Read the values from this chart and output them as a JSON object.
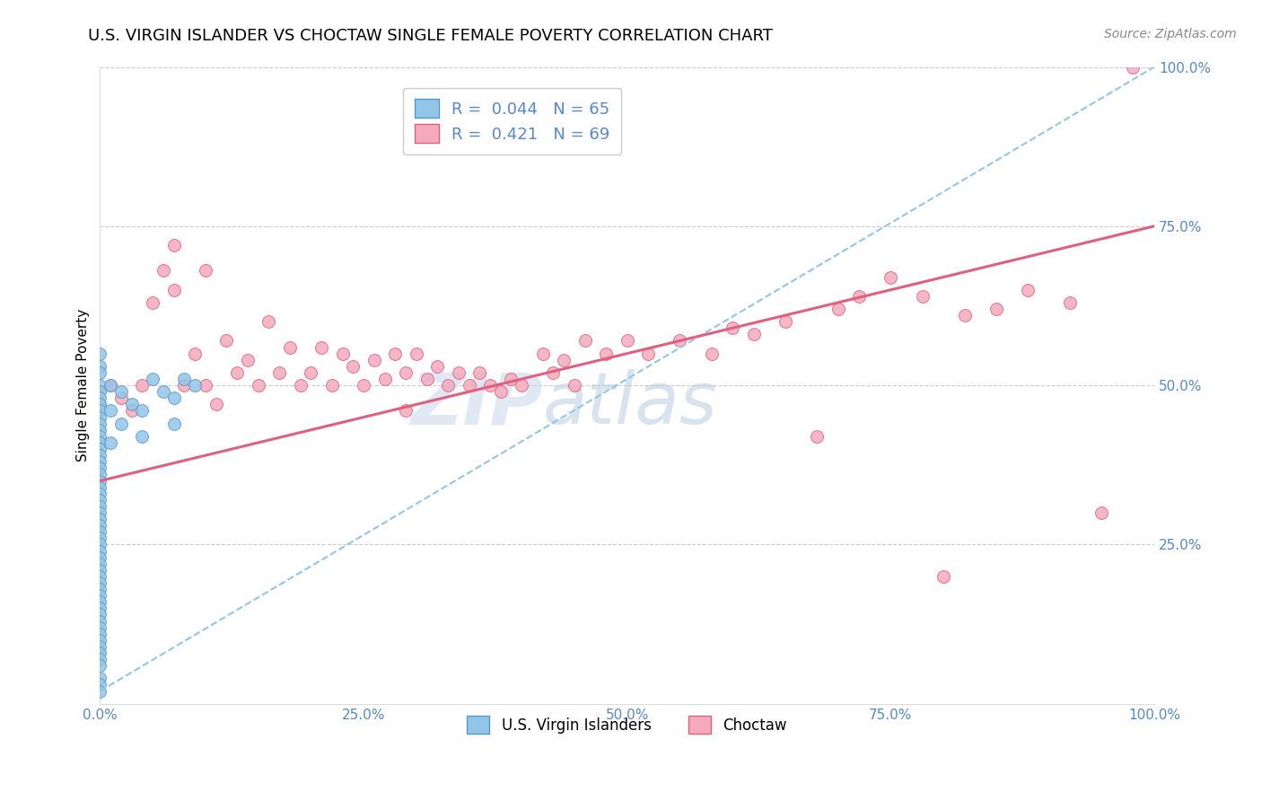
{
  "title": "U.S. VIRGIN ISLANDER VS CHOCTAW SINGLE FEMALE POVERTY CORRELATION CHART",
  "source": "Source: ZipAtlas.com",
  "ylabel": "Single Female Poverty",
  "xlim": [
    0.0,
    1.0
  ],
  "ylim": [
    0.0,
    1.0
  ],
  "xticks": [
    0.0,
    0.25,
    0.5,
    0.75,
    1.0
  ],
  "yticks": [
    0.25,
    0.5,
    0.75,
    1.0
  ],
  "xticklabels": [
    "0.0%",
    "25.0%",
    "50.0%",
    "75.0%",
    "100.0%"
  ],
  "yticklabels": [
    "25.0%",
    "50.0%",
    "75.0%",
    "100.0%"
  ],
  "blue_scatter_x": [
    0.0,
    0.0,
    0.0,
    0.0,
    0.0,
    0.0,
    0.0,
    0.0,
    0.0,
    0.0,
    0.0,
    0.0,
    0.0,
    0.0,
    0.0,
    0.0,
    0.0,
    0.0,
    0.0,
    0.0,
    0.0,
    0.0,
    0.0,
    0.0,
    0.0,
    0.0,
    0.0,
    0.0,
    0.0,
    0.0,
    0.0,
    0.0,
    0.0,
    0.0,
    0.0,
    0.0,
    0.0,
    0.0,
    0.0,
    0.0,
    0.0,
    0.0,
    0.0,
    0.0,
    0.0,
    0.0,
    0.0,
    0.0,
    0.0,
    0.0,
    0.0,
    0.01,
    0.01,
    0.01,
    0.02,
    0.02,
    0.03,
    0.04,
    0.04,
    0.05,
    0.06,
    0.07,
    0.07,
    0.08,
    0.09
  ],
  "blue_scatter_y": [
    0.5,
    0.49,
    0.48,
    0.47,
    0.46,
    0.45,
    0.44,
    0.43,
    0.42,
    0.41,
    0.4,
    0.39,
    0.38,
    0.37,
    0.36,
    0.35,
    0.34,
    0.33,
    0.32,
    0.31,
    0.3,
    0.29,
    0.28,
    0.27,
    0.26,
    0.25,
    0.24,
    0.23,
    0.22,
    0.21,
    0.2,
    0.19,
    0.18,
    0.17,
    0.16,
    0.15,
    0.14,
    0.13,
    0.12,
    0.11,
    0.1,
    0.09,
    0.08,
    0.07,
    0.06,
    0.04,
    0.03,
    0.02,
    0.53,
    0.55,
    0.52,
    0.5,
    0.46,
    0.41,
    0.49,
    0.44,
    0.47,
    0.46,
    0.42,
    0.51,
    0.49,
    0.48,
    0.44,
    0.51,
    0.5
  ],
  "pink_scatter_x": [
    0.0,
    0.01,
    0.02,
    0.03,
    0.04,
    0.05,
    0.06,
    0.07,
    0.07,
    0.08,
    0.09,
    0.1,
    0.1,
    0.11,
    0.12,
    0.13,
    0.14,
    0.15,
    0.16,
    0.17,
    0.18,
    0.19,
    0.2,
    0.21,
    0.22,
    0.23,
    0.24,
    0.25,
    0.26,
    0.27,
    0.28,
    0.29,
    0.29,
    0.3,
    0.31,
    0.32,
    0.33,
    0.34,
    0.35,
    0.36,
    0.37,
    0.38,
    0.39,
    0.4,
    0.42,
    0.43,
    0.44,
    0.45,
    0.46,
    0.48,
    0.5,
    0.52,
    0.55,
    0.58,
    0.6,
    0.62,
    0.65,
    0.68,
    0.7,
    0.72,
    0.75,
    0.78,
    0.8,
    0.82,
    0.85,
    0.88,
    0.92,
    0.95,
    0.98
  ],
  "pink_scatter_y": [
    0.47,
    0.5,
    0.48,
    0.46,
    0.5,
    0.63,
    0.68,
    0.72,
    0.65,
    0.5,
    0.55,
    0.5,
    0.68,
    0.47,
    0.57,
    0.52,
    0.54,
    0.5,
    0.6,
    0.52,
    0.56,
    0.5,
    0.52,
    0.56,
    0.5,
    0.55,
    0.53,
    0.5,
    0.54,
    0.51,
    0.55,
    0.46,
    0.52,
    0.55,
    0.51,
    0.53,
    0.5,
    0.52,
    0.5,
    0.52,
    0.5,
    0.49,
    0.51,
    0.5,
    0.55,
    0.52,
    0.54,
    0.5,
    0.57,
    0.55,
    0.57,
    0.55,
    0.57,
    0.55,
    0.59,
    0.58,
    0.6,
    0.42,
    0.62,
    0.64,
    0.67,
    0.64,
    0.2,
    0.61,
    0.62,
    0.65,
    0.63,
    0.3,
    1.0
  ],
  "blue_line_x": [
    0.0,
    1.0
  ],
  "blue_line_y": [
    0.02,
    1.0
  ],
  "pink_line_x": [
    0.0,
    1.0
  ],
  "pink_line_y": [
    0.35,
    0.75
  ],
  "scatter_size": 100,
  "blue_color": "#92c5e8",
  "blue_edge": "#5599cc",
  "pink_color": "#f4aabb",
  "pink_edge": "#e06080",
  "watermark": "ZIPatlas",
  "watermark_color": "#c8d8ea",
  "grid_color": "#cccccc",
  "title_fontsize": 13,
  "axis_label_fontsize": 11,
  "tick_fontsize": 11,
  "source_fontsize": 10,
  "tick_color": "#5588cc"
}
